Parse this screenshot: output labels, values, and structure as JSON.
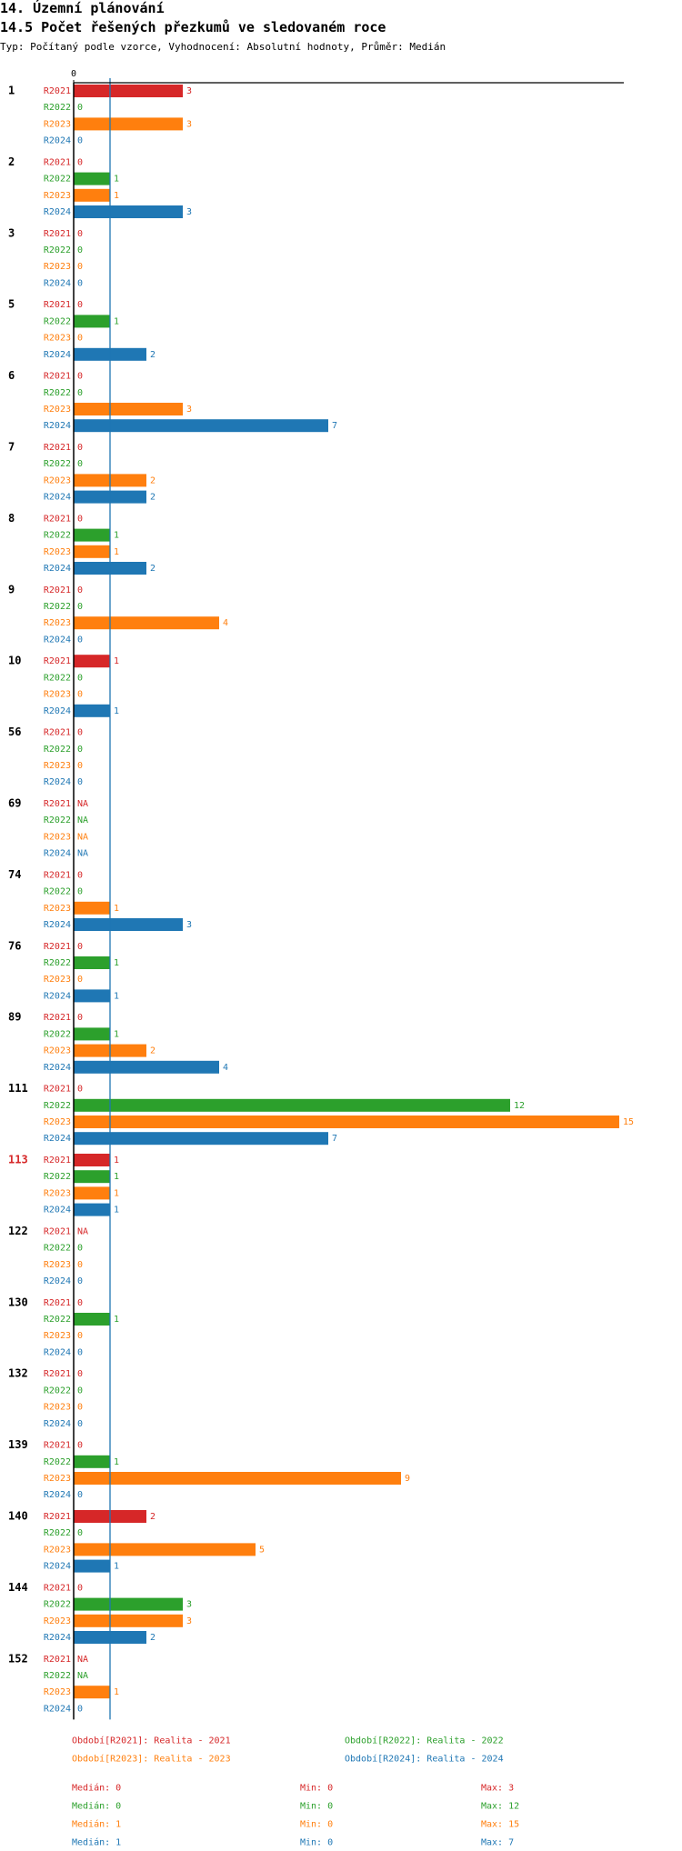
{
  "header": {
    "title": "14. Územní plánování",
    "subtitle_title": "14.5 Počet řešených přezkumů ve sledovaném roce",
    "description": "Typ: Počítaný podle vzorce, Vyhodnocení: Absolutní hodnoty, Průměr: Medián"
  },
  "colors": {
    "R2021": "#d62728",
    "R2022": "#2ca02c",
    "R2023": "#ff7f0e",
    "R2024": "#1f77b4",
    "highlight_category": "#d62728",
    "median_line": "#1f77b4"
  },
  "chart_data": {
    "type": "bar",
    "orientation": "horizontal",
    "x_axis_tick_label": "0",
    "xlim": [
      0,
      15
    ],
    "median_line_value": 1,
    "series_keys": [
      "R2021",
      "R2022",
      "R2023",
      "R2024"
    ],
    "highlight_category": "113",
    "categories": [
      {
        "label": "1",
        "values": [
          3,
          0,
          3,
          0
        ]
      },
      {
        "label": "2",
        "values": [
          0,
          1,
          1,
          3
        ]
      },
      {
        "label": "3",
        "values": [
          0,
          0,
          0,
          0
        ]
      },
      {
        "label": "5",
        "values": [
          0,
          1,
          0,
          2
        ]
      },
      {
        "label": "6",
        "values": [
          0,
          0,
          3,
          7
        ]
      },
      {
        "label": "7",
        "values": [
          0,
          0,
          2,
          2
        ]
      },
      {
        "label": "8",
        "values": [
          0,
          1,
          1,
          2
        ]
      },
      {
        "label": "9",
        "values": [
          0,
          0,
          4,
          0
        ]
      },
      {
        "label": "10",
        "values": [
          1,
          0,
          0,
          1
        ]
      },
      {
        "label": "56",
        "values": [
          0,
          0,
          0,
          0
        ]
      },
      {
        "label": "69",
        "values": [
          "NA",
          "NA",
          "NA",
          "NA"
        ]
      },
      {
        "label": "74",
        "values": [
          0,
          0,
          1,
          3
        ]
      },
      {
        "label": "76",
        "values": [
          0,
          1,
          0,
          1
        ]
      },
      {
        "label": "89",
        "values": [
          0,
          1,
          2,
          4
        ]
      },
      {
        "label": "111",
        "values": [
          0,
          12,
          15,
          7
        ]
      },
      {
        "label": "113",
        "values": [
          1,
          1,
          1,
          1
        ]
      },
      {
        "label": "122",
        "values": [
          "NA",
          0,
          0,
          0
        ]
      },
      {
        "label": "130",
        "values": [
          0,
          1,
          0,
          0
        ]
      },
      {
        "label": "132",
        "values": [
          0,
          0,
          0,
          0
        ]
      },
      {
        "label": "139",
        "values": [
          0,
          1,
          9,
          0
        ]
      },
      {
        "label": "140",
        "values": [
          2,
          0,
          5,
          1
        ]
      },
      {
        "label": "144",
        "values": [
          0,
          3,
          3,
          2
        ]
      },
      {
        "label": "152",
        "values": [
          "NA",
          "NA",
          1,
          0
        ]
      }
    ],
    "legend": [
      {
        "key": "R2021",
        "text": "Období[R2021]: Realita - 2021"
      },
      {
        "key": "R2022",
        "text": "Období[R2022]: Realita - 2022"
      },
      {
        "key": "R2023",
        "text": "Období[R2023]: Realita - 2023"
      },
      {
        "key": "R2024",
        "text": "Období[R2024]: Realita - 2024"
      }
    ],
    "stats": [
      {
        "key": "R2021",
        "median": "Medián: 0",
        "min": "Min: 0",
        "max": "Max: 3"
      },
      {
        "key": "R2022",
        "median": "Medián: 0",
        "min": "Min: 0",
        "max": "Max: 12"
      },
      {
        "key": "R2023",
        "median": "Medián: 1",
        "min": "Min: 0",
        "max": "Max: 15"
      },
      {
        "key": "R2024",
        "median": "Medián: 1",
        "min": "Min: 0",
        "max": "Max: 7"
      }
    ]
  }
}
